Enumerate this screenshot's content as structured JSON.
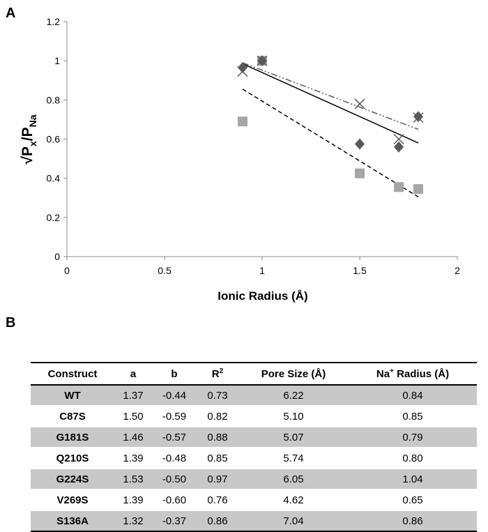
{
  "panels": {
    "a": "A",
    "b": "B"
  },
  "chart_data": {
    "type": "scatter",
    "xlabel": "Ionic Radius (Å)",
    "ylabel": {
      "sqrt": "√",
      "p": "P",
      "x_sub": "x",
      "slash": "/P",
      "na_sub": "Na"
    },
    "xlim": [
      0,
      2
    ],
    "ylim": [
      0,
      1.2
    ],
    "x_ticks": [
      "0",
      "0.5",
      "1",
      "1.5",
      "2"
    ],
    "y_ticks": [
      "0",
      "0.2",
      "0.4",
      "0.6",
      "0.8",
      "1",
      "1.2"
    ],
    "grid": false,
    "series": [
      {
        "marker": "diamond",
        "color": "#595959",
        "points": [
          [
            0.9,
            0.965
          ],
          [
            1.0,
            1.0
          ],
          [
            1.5,
            0.575
          ],
          [
            1.7,
            0.56
          ],
          [
            1.8,
            0.715
          ]
        ],
        "trend": {
          "style": "solid",
          "from": [
            0.9,
            0.985
          ],
          "to": [
            1.8,
            0.58
          ]
        }
      },
      {
        "marker": "square",
        "color": "#a6a6a6",
        "points": [
          [
            0.9,
            0.69
          ],
          [
            1.0,
            1.0
          ],
          [
            1.5,
            0.425
          ],
          [
            1.7,
            0.355
          ],
          [
            1.8,
            0.345
          ]
        ],
        "trend": {
          "style": "dashed",
          "from": [
            0.9,
            0.855
          ],
          "to": [
            1.8,
            0.305
          ]
        }
      },
      {
        "marker": "x",
        "color": "#595959",
        "points": [
          [
            0.9,
            0.945
          ],
          [
            1.0,
            1.0
          ],
          [
            1.5,
            0.78
          ],
          [
            1.7,
            0.6
          ],
          [
            1.8,
            0.71
          ]
        ],
        "trend": {
          "style": "dashdot",
          "from": [
            0.9,
            0.99
          ],
          "to": [
            1.8,
            0.65
          ]
        }
      }
    ]
  },
  "table": {
    "headers": [
      "Construct",
      "a",
      "b",
      "R",
      "Pore Size (Å)",
      "Na",
      "Radius (Å)"
    ],
    "header_sup": {
      "r": "2",
      "na": "+"
    },
    "rows": [
      {
        "construct": "WT",
        "a": "1.37",
        "b": "-0.44",
        "r2": "0.73",
        "pore": "6.22",
        "na_radius": "0.84"
      },
      {
        "construct": "C87S",
        "a": "1.50",
        "b": "-0.59",
        "r2": "0.82",
        "pore": "5.10",
        "na_radius": "0.85"
      },
      {
        "construct": "G181S",
        "a": "1.46",
        "b": "-0.57",
        "r2": "0.88",
        "pore": "5.07",
        "na_radius": "0.79"
      },
      {
        "construct": "Q210S",
        "a": "1.39",
        "b": "-0.48",
        "r2": "0.85",
        "pore": "5.74",
        "na_radius": "0.80"
      },
      {
        "construct": "G224S",
        "a": "1.53",
        "b": "-0.50",
        "r2": "0.97",
        "pore": "6.05",
        "na_radius": "1.04"
      },
      {
        "construct": "V269S",
        "a": "1.39",
        "b": "-0.60",
        "r2": "0.76",
        "pore": "4.62",
        "na_radius": "0.65"
      },
      {
        "construct": "S136A",
        "a": "1.32",
        "b": "-0.37",
        "r2": "0.86",
        "pore": "7.04",
        "na_radius": "0.86"
      }
    ]
  }
}
